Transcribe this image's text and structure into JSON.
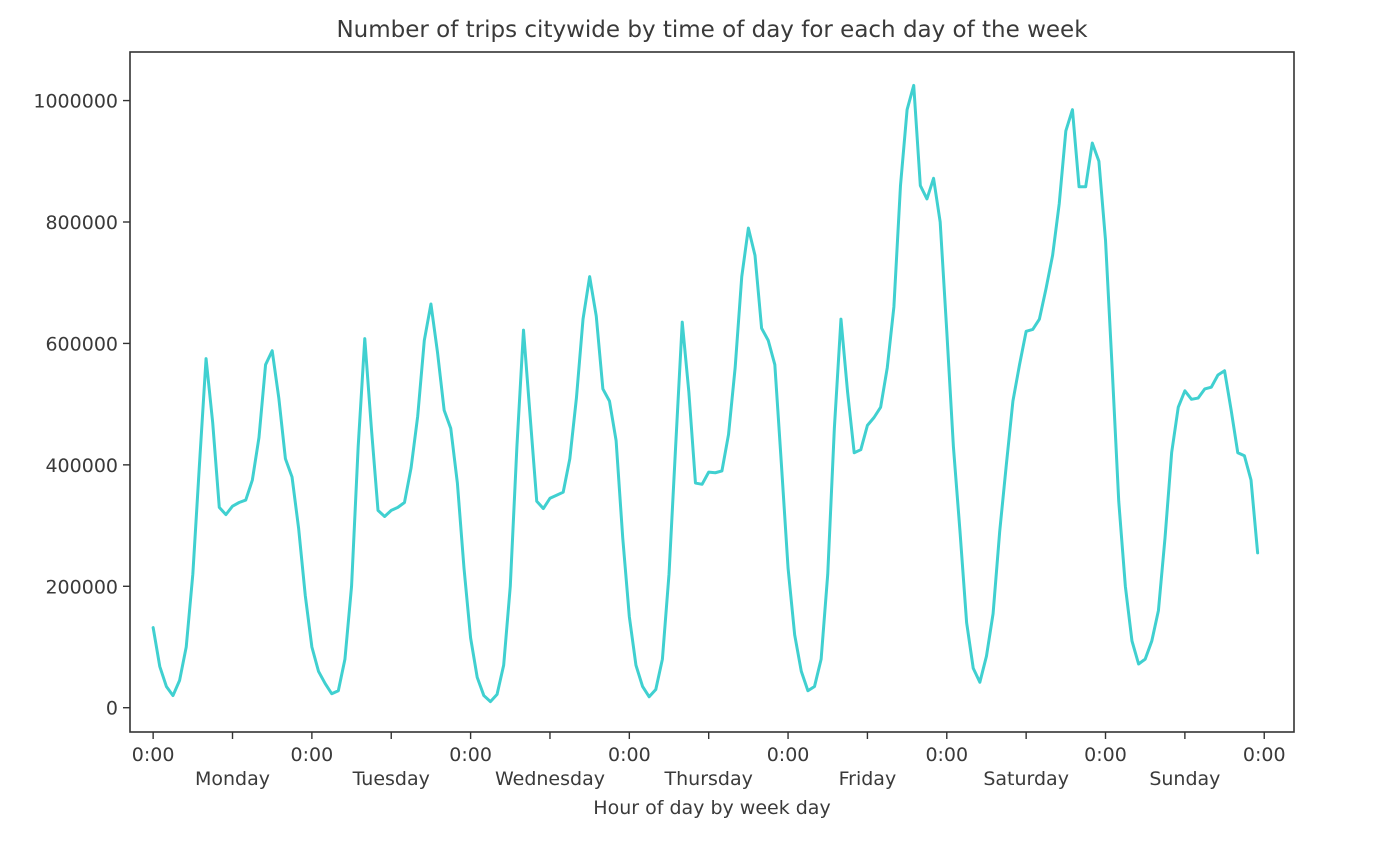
{
  "chart_data": {
    "type": "line",
    "title": "Number of trips citywide by time of day for each day of the week",
    "xlabel": "Hour of day by week day",
    "ylabel": "",
    "grid": false,
    "legend": "none",
    "line_color": "#40d0d0",
    "xlim": [
      -3.5,
      172.5
    ],
    "ylim": [
      -40000,
      1080000
    ],
    "y_ticks": [
      {
        "value": 0,
        "label": "0"
      },
      {
        "value": 200000,
        "label": "200000"
      },
      {
        "value": 400000,
        "label": "400000"
      },
      {
        "value": 600000,
        "label": "600000"
      },
      {
        "value": 800000,
        "label": "800000"
      },
      {
        "value": 1000000,
        "label": "1000000"
      }
    ],
    "x_major_ticks": [
      {
        "value": 0,
        "label": "0:00"
      },
      {
        "value": 24,
        "label": "0:00"
      },
      {
        "value": 48,
        "label": "0:00"
      },
      {
        "value": 72,
        "label": "0:00"
      },
      {
        "value": 96,
        "label": "0:00"
      },
      {
        "value": 120,
        "label": "0:00"
      },
      {
        "value": 144,
        "label": "0:00"
      },
      {
        "value": 168,
        "label": "0:00"
      }
    ],
    "x_minor_ticks": [
      {
        "value": 12,
        "label": "Monday"
      },
      {
        "value": 36,
        "label": "Tuesday"
      },
      {
        "value": 60,
        "label": "Wednesday"
      },
      {
        "value": 84,
        "label": "Thursday"
      },
      {
        "value": 108,
        "label": "Friday"
      },
      {
        "value": 132,
        "label": "Saturday"
      },
      {
        "value": 156,
        "label": "Sunday"
      }
    ],
    "series": [
      {
        "x": [
          0,
          1,
          2,
          3,
          4,
          5,
          6,
          7,
          8,
          9,
          10,
          11,
          12,
          13,
          14,
          15,
          16,
          17,
          18,
          19,
          20,
          21,
          22,
          23,
          24,
          25,
          26,
          27,
          28,
          29,
          30,
          31,
          32,
          33,
          34,
          35,
          36,
          37,
          38,
          39,
          40,
          41,
          42,
          43,
          44,
          45,
          46,
          47,
          48,
          49,
          50,
          51,
          52,
          53,
          54,
          55,
          56,
          57,
          58,
          59,
          60,
          61,
          62,
          63,
          64,
          65,
          66,
          67,
          68,
          69,
          70,
          71,
          72,
          73,
          74,
          75,
          76,
          77,
          78,
          79,
          80,
          81,
          82,
          83,
          84,
          85,
          86,
          87,
          88,
          89,
          90,
          91,
          92,
          93,
          94,
          95,
          96,
          97,
          98,
          99,
          100,
          101,
          102,
          103,
          104,
          105,
          106,
          107,
          108,
          109,
          110,
          111,
          112,
          113,
          114,
          115,
          116,
          117,
          118,
          119,
          120,
          121,
          122,
          123,
          124,
          125,
          126,
          127,
          128,
          129,
          130,
          131,
          132,
          133,
          134,
          135,
          136,
          137,
          138,
          139,
          140,
          141,
          142,
          143,
          144,
          145,
          146,
          147,
          148,
          149,
          150,
          151,
          152,
          153,
          154,
          155,
          156,
          157,
          158,
          159,
          160,
          161,
          162,
          163,
          164,
          165,
          166,
          167
        ],
        "values": [
          132000,
          68000,
          35000,
          20000,
          45000,
          100000,
          220000,
          400000,
          575000,
          470000,
          330000,
          318000,
          332000,
          338000,
          342000,
          375000,
          445000,
          565000,
          588000,
          510000,
          410000,
          380000,
          295000,
          185000,
          100000,
          60000,
          40000,
          23000,
          28000,
          80000,
          200000,
          430000,
          608000,
          460000,
          325000,
          315000,
          325000,
          330000,
          338000,
          395000,
          480000,
          605000,
          665000,
          585000,
          490000,
          460000,
          370000,
          230000,
          115000,
          50000,
          20000,
          10000,
          22000,
          70000,
          200000,
          430000,
          622000,
          480000,
          340000,
          328000,
          345000,
          350000,
          355000,
          410000,
          510000,
          640000,
          710000,
          645000,
          525000,
          505000,
          440000,
          280000,
          150000,
          70000,
          35000,
          18000,
          30000,
          80000,
          220000,
          430000,
          635000,
          520000,
          370000,
          368000,
          388000,
          387000,
          390000,
          450000,
          560000,
          710000,
          790000,
          745000,
          625000,
          605000,
          565000,
          400000,
          230000,
          120000,
          60000,
          28000,
          35000,
          80000,
          220000,
          460000,
          640000,
          520000,
          420000,
          425000,
          465000,
          478000,
          495000,
          560000,
          660000,
          860000,
          985000,
          1025000,
          860000,
          838000,
          872000,
          800000,
          620000,
          430000,
          290000,
          140000,
          65000,
          42000,
          85000,
          155000,
          290000,
          400000,
          505000,
          565000,
          620000,
          623000,
          640000,
          690000,
          745000,
          830000,
          950000,
          985000,
          858000,
          858000,
          930000,
          900000,
          770000,
          560000,
          340000,
          200000,
          110000,
          72000,
          80000,
          110000,
          160000,
          280000,
          420000,
          495000,
          522000,
          508000,
          510000,
          525000,
          528000,
          548000,
          555000,
          490000,
          420000,
          415000,
          375000,
          255000
        ]
      }
    ]
  }
}
